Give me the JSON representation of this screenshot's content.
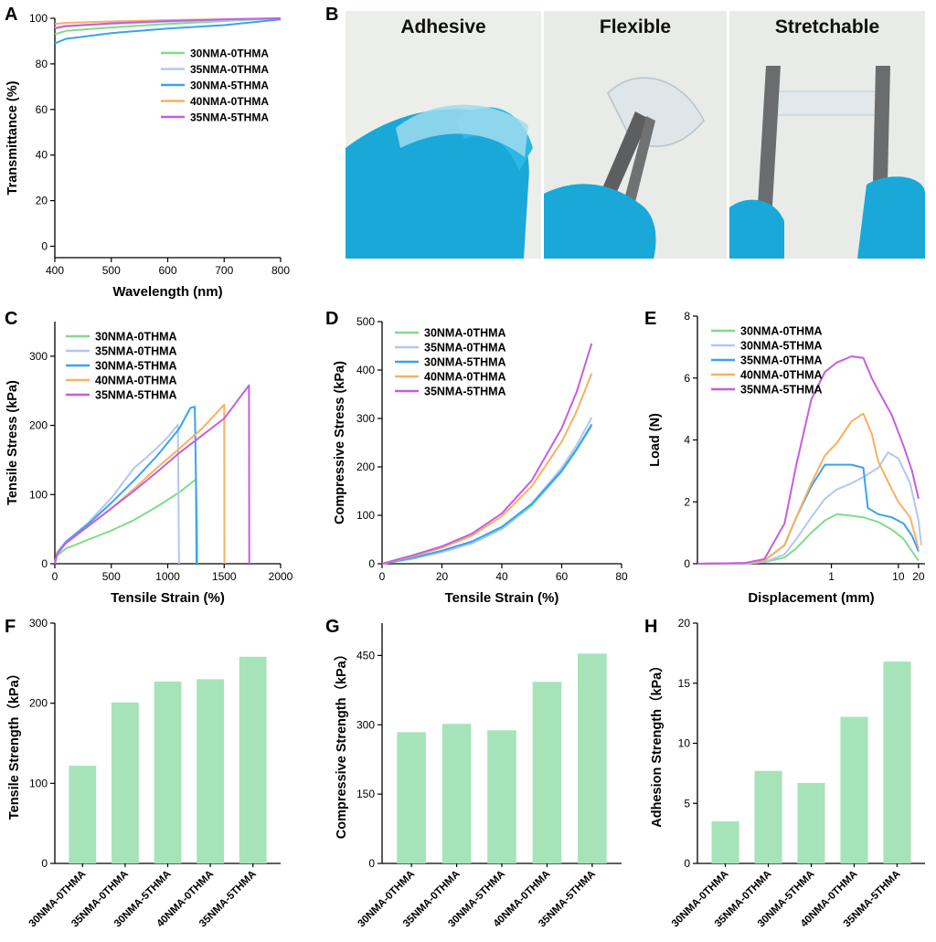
{
  "figure": {
    "panel_letters": [
      "A",
      "B",
      "C",
      "D",
      "E",
      "F",
      "G",
      "H"
    ],
    "photos": [
      {
        "label": "Adhesive"
      },
      {
        "label": "Flexible"
      },
      {
        "label": "Stretchable"
      }
    ]
  },
  "colors": {
    "30NMA-0THMA": "#7fdc8c",
    "35NMA-0THMA": "#b4c6f2",
    "30NMA-5THMA": "#3aa2f0",
    "40NMA-0THMA": "#f9b060",
    "35NMA-5THMA": "#c35fe0",
    "bar": "#a6e3b9",
    "glove": "#1aa8d8",
    "photo_bg": "#e9ece9"
  },
  "chart_data": [
    {
      "id": "A",
      "type": "line",
      "xlabel": "Wavelength (nm)",
      "ylabel": "Transmittance (%)",
      "xlim": [
        400,
        800
      ],
      "ylim": [
        -5,
        100
      ],
      "xticks": [
        400,
        500,
        600,
        700,
        800
      ],
      "yticks": [
        0,
        20,
        40,
        60,
        80,
        100
      ],
      "legend": "right-middle",
      "series": [
        {
          "name": "30NMA-0THMA",
          "color": "#7fdc8c",
          "x": [
            400,
            420,
            500,
            600,
            700,
            800
          ],
          "y": [
            93,
            94.5,
            96,
            97.5,
            98.8,
            100
          ]
        },
        {
          "name": "35NMA-0THMA",
          "color": "#b4c6f2",
          "x": [
            400,
            420,
            500,
            600,
            700,
            800
          ],
          "y": [
            96,
            96.8,
            97.5,
            98.5,
            99.2,
            100
          ]
        },
        {
          "name": "30NMA-5THMA",
          "color": "#3aa2f0",
          "x": [
            400,
            420,
            500,
            600,
            700,
            780,
            800
          ],
          "y": [
            89,
            91,
            93.5,
            95.5,
            97,
            99,
            99.5
          ]
        },
        {
          "name": "40NMA-0THMA",
          "color": "#f9b060",
          "x": [
            400,
            420,
            500,
            600,
            700,
            800
          ],
          "y": [
            97.5,
            98,
            98.6,
            99.2,
            99.6,
            100
          ]
        },
        {
          "name": "35NMA-5THMA",
          "color": "#c35fe0",
          "x": [
            400,
            420,
            500,
            600,
            700,
            800
          ],
          "y": [
            95.5,
            96.5,
            97.8,
            98.8,
            99.5,
            100
          ]
        }
      ]
    },
    {
      "id": "C",
      "type": "line",
      "xlabel": "Tensile Strain (%)",
      "ylabel": "Tensile Stress (kPa)",
      "xlim": [
        0,
        2000
      ],
      "ylim": [
        0,
        350
      ],
      "xticks": [
        0,
        500,
        1000,
        1500,
        2000
      ],
      "yticks": [
        0,
        100,
        200,
        300
      ],
      "legend": "top-left",
      "series": [
        {
          "name": "30NMA-0THMA",
          "color": "#7fdc8c",
          "x": [
            0,
            20,
            100,
            300,
            500,
            700,
            900,
            1100,
            1250,
            1260,
            1262
          ],
          "y": [
            0,
            12,
            22,
            35,
            48,
            63,
            82,
            103,
            122,
            60,
            0
          ]
        },
        {
          "name": "35NMA-0THMA",
          "color": "#b4c6f2",
          "x": [
            0,
            20,
            100,
            300,
            500,
            700,
            800,
            900,
            1000,
            1090,
            1100
          ],
          "y": [
            0,
            16,
            32,
            60,
            95,
            138,
            152,
            167,
            183,
            201,
            0
          ]
        },
        {
          "name": "30NMA-5THMA",
          "color": "#3aa2f0",
          "x": [
            0,
            20,
            100,
            300,
            500,
            700,
            900,
            1100,
            1200,
            1240,
            1250,
            1255
          ],
          "y": [
            0,
            16,
            32,
            58,
            88,
            120,
            155,
            195,
            225,
            227,
            120,
            0
          ]
        },
        {
          "name": "40NMA-0THMA",
          "color": "#f9b060",
          "x": [
            0,
            20,
            100,
            300,
            500,
            700,
            900,
            1100,
            1300,
            1500,
            1502
          ],
          "y": [
            0,
            15,
            30,
            55,
            80,
            108,
            138,
            166,
            195,
            230,
            0
          ]
        },
        {
          "name": "35NMA-5THMA",
          "color": "#c35fe0",
          "x": [
            0,
            20,
            100,
            300,
            500,
            700,
            900,
            1100,
            1300,
            1500,
            1720,
            1722
          ],
          "y": [
            0,
            14,
            30,
            55,
            80,
            105,
            132,
            160,
            185,
            210,
            258,
            0
          ]
        }
      ]
    },
    {
      "id": "D",
      "type": "line",
      "xlabel": "Tensile Strain (%)",
      "ylabel": "Compressive Stress (kPa)",
      "xlim": [
        0,
        80
      ],
      "ylim": [
        0,
        500
      ],
      "xticks": [
        0,
        20,
        40,
        60,
        80
      ],
      "yticks": [
        0,
        100,
        200,
        300,
        400,
        500
      ],
      "legend": "top-left",
      "series": [
        {
          "name": "30NMA-0THMA",
          "color": "#7fdc8c",
          "x": [
            0,
            10,
            20,
            30,
            40,
            50,
            60,
            65,
            70
          ],
          "y": [
            0,
            10,
            24,
            42,
            72,
            120,
            190,
            235,
            285
          ]
        },
        {
          "name": "35NMA-0THMA",
          "color": "#b4c6f2",
          "x": [
            0,
            10,
            20,
            30,
            40,
            50,
            60,
            65,
            70
          ],
          "y": [
            0,
            10,
            24,
            43,
            74,
            124,
            198,
            245,
            302
          ]
        },
        {
          "name": "30NMA-5THMA",
          "color": "#3aa2f0",
          "x": [
            0,
            10,
            20,
            30,
            40,
            50,
            60,
            65,
            70
          ],
          "y": [
            0,
            12,
            27,
            46,
            76,
            124,
            192,
            237,
            288
          ]
        },
        {
          "name": "40NMA-0THMA",
          "color": "#f9b060",
          "x": [
            0,
            10,
            20,
            30,
            40,
            50,
            60,
            65,
            70
          ],
          "y": [
            0,
            15,
            33,
            58,
            98,
            160,
            252,
            315,
            393
          ]
        },
        {
          "name": "35NMA-5THMA",
          "color": "#c35fe0",
          "x": [
            0,
            10,
            20,
            30,
            40,
            50,
            60,
            65,
            70
          ],
          "y": [
            0,
            17,
            36,
            62,
            104,
            172,
            280,
            355,
            455
          ]
        }
      ]
    },
    {
      "id": "E",
      "type": "line",
      "xlabel": "Displacement (mm)",
      "ylabel": "Load (N)",
      "xscale": "log",
      "xlim": [
        0.01,
        25
      ],
      "ylim": [
        0,
        8
      ],
      "xticks": [
        1,
        10,
        20
      ],
      "yticks": [
        0,
        2,
        4,
        6,
        8
      ],
      "legend": "top-left",
      "series": [
        {
          "name": "30NMA-0THMA",
          "color": "#7fdc8c",
          "x": [
            0.01,
            0.05,
            0.1,
            0.2,
            0.3,
            0.5,
            0.8,
            1.2,
            2,
            3,
            5,
            8,
            12,
            16,
            20
          ],
          "y": [
            0,
            0.01,
            0.05,
            0.2,
            0.5,
            1.0,
            1.4,
            1.6,
            1.55,
            1.5,
            1.35,
            1.1,
            0.8,
            0.4,
            0.1
          ]
        },
        {
          "name": "30NMA-5THMA",
          "color": "#b4c6f2",
          "x": [
            0.01,
            0.05,
            0.1,
            0.2,
            0.3,
            0.5,
            0.8,
            1.2,
            2,
            3,
            5,
            7,
            10,
            15,
            20,
            22
          ],
          "y": [
            0,
            0.01,
            0.06,
            0.3,
            0.8,
            1.5,
            2.1,
            2.4,
            2.6,
            2.8,
            3.1,
            3.6,
            3.4,
            2.6,
            1.4,
            0.6
          ]
        },
        {
          "name": "35NMA-0THMA",
          "color": "#3aa2f0",
          "x": [
            0.01,
            0.05,
            0.1,
            0.2,
            0.3,
            0.5,
            0.8,
            1.2,
            2,
            3,
            3.5,
            5,
            8,
            12,
            16,
            20
          ],
          "y": [
            0,
            0.02,
            0.1,
            0.6,
            1.5,
            2.5,
            3.2,
            3.2,
            3.2,
            3.1,
            1.8,
            1.6,
            1.5,
            1.3,
            0.9,
            0.4
          ]
        },
        {
          "name": "40NMA-0THMA",
          "color": "#f9b060",
          "x": [
            0.01,
            0.05,
            0.1,
            0.2,
            0.3,
            0.5,
            0.8,
            1.2,
            2,
            3,
            4,
            5,
            8,
            10,
            15,
            20
          ],
          "y": [
            0,
            0.02,
            0.1,
            0.6,
            1.5,
            2.6,
            3.5,
            3.9,
            4.6,
            4.85,
            4.2,
            3.3,
            2.4,
            2.0,
            1.5,
            0.5
          ]
        },
        {
          "name": "35NMA-5THMA",
          "color": "#c35fe0",
          "x": [
            0.01,
            0.05,
            0.1,
            0.2,
            0.3,
            0.5,
            0.8,
            1.2,
            2,
            3,
            4,
            5,
            8,
            12,
            16,
            20
          ],
          "y": [
            0,
            0.02,
            0.15,
            1.3,
            3.2,
            5.3,
            6.2,
            6.5,
            6.7,
            6.65,
            6.0,
            5.6,
            4.8,
            3.8,
            3.0,
            2.1
          ]
        }
      ]
    },
    {
      "id": "F",
      "type": "bar",
      "xlabel": "",
      "ylabel": "Tensile Strength（kPa）",
      "categories": [
        "30NMA-0THMA",
        "35NMA-0THMA",
        "30NMA-5THMA",
        "40NMA-0THMA",
        "35NMA-5THMA"
      ],
      "values": [
        122,
        201,
        227,
        230,
        258
      ],
      "ylim": [
        0,
        300
      ],
      "yticks": [
        0,
        100,
        200,
        300
      ]
    },
    {
      "id": "G",
      "type": "bar",
      "xlabel": "",
      "ylabel": "Compressive Strength（kPa）",
      "categories": [
        "30NMA-0THMA",
        "35NMA-0THMA",
        "30NMA-5THMA",
        "40NMA-0THMA",
        "35NMA-5THMA"
      ],
      "values": [
        284,
        302,
        288,
        393,
        454
      ],
      "ylim": [
        0,
        520
      ],
      "yticks": [
        0,
        150,
        300,
        450
      ]
    },
    {
      "id": "H",
      "type": "bar",
      "xlabel": "",
      "ylabel": "Adhesion Strength（kPa）",
      "categories": [
        "30NMA-0THMA",
        "35NMA-0THMA",
        "30NMA-5THMA",
        "40NMA-0THMA",
        "35NMA-5THMA"
      ],
      "values": [
        3.5,
        7.7,
        6.7,
        12.2,
        16.8
      ],
      "ylim": [
        0,
        20
      ],
      "yticks": [
        0,
        5,
        10,
        15,
        20
      ]
    }
  ]
}
